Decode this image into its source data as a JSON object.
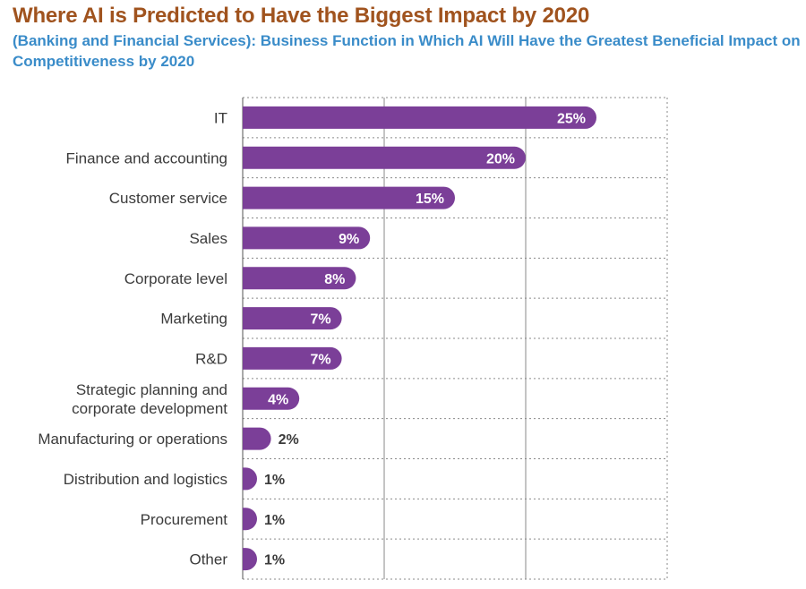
{
  "chart_data": {
    "type": "bar",
    "orientation": "horizontal",
    "title": "Where AI is Predicted to Have the Biggest Impact by 2020",
    "subtitle": "(Banking and Financial Services): Business Function in Which AI Will Have the Greatest Beneficial Impact on Competitiveness by 2020",
    "categories": [
      [
        "IT"
      ],
      [
        "Finance and accounting"
      ],
      [
        "Customer service"
      ],
      [
        "Sales"
      ],
      [
        "Corporate level"
      ],
      [
        "Marketing"
      ],
      [
        "R&D"
      ],
      [
        "Strategic planning and",
        "corporate development"
      ],
      [
        "Manufacturing or operations"
      ],
      [
        "Distribution and logistics"
      ],
      [
        "Procurement"
      ],
      [
        "Other"
      ]
    ],
    "values": [
      25,
      20,
      15,
      9,
      8,
      7,
      7,
      4,
      2,
      1,
      1,
      1
    ],
    "value_labels": [
      "25%",
      "20%",
      "15%",
      "9%",
      "8%",
      "7%",
      "7%",
      "4%",
      "2%",
      "1%",
      "1%",
      "1%"
    ],
    "xlim": [
      0,
      30
    ],
    "grid": true,
    "bar_color": "#7b3f98",
    "grid_color": "#8a8a8a"
  }
}
